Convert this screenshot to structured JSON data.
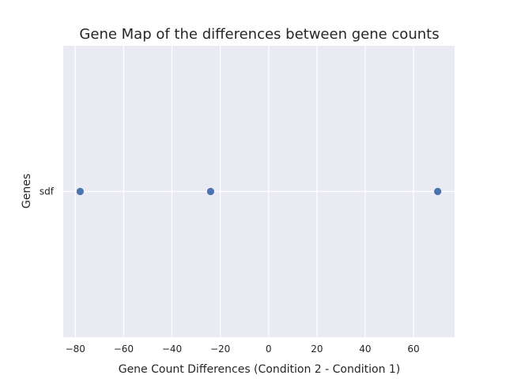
{
  "chart_data": {
    "type": "scatter",
    "title": "Gene Map of the differences between gene counts",
    "xlabel": "Gene Count Differences (Condition 2 - Condition 1)",
    "ylabel": "Genes",
    "xlim": [
      -85,
      77
    ],
    "x_ticks": [
      -80,
      -60,
      -40,
      -20,
      0,
      20,
      40,
      60
    ],
    "x_tick_labels": [
      "−80",
      "−60",
      "−40",
      "−20",
      "0",
      "20",
      "40",
      "60"
    ],
    "categories": [
      "sdf"
    ],
    "grid": true,
    "points": [
      {
        "x": -78,
        "y": "sdf"
      },
      {
        "x": -24,
        "y": "sdf"
      },
      {
        "x": 70,
        "y": "sdf"
      }
    ],
    "colors": {
      "background": "#eaeaf2",
      "grid": "#ffffff",
      "marker": "#4c72b0"
    }
  }
}
